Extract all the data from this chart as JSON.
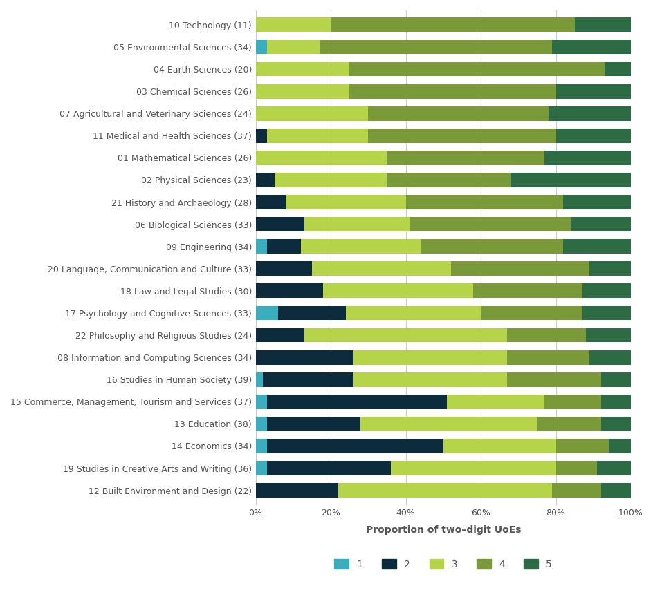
{
  "categories": [
    "10 Technology (11)",
    "05 Environmental Sciences (34)",
    "04 Earth Sciences (20)",
    "03 Chemical Sciences (26)",
    "07 Agricultural and Veterinary Sciences (24)",
    "11 Medical and Health Sciences (37)",
    "01 Mathematical Sciences (26)",
    "02 Physical Sciences (23)",
    "21 History and Archaeology (28)",
    "06 Biological Sciences (33)",
    "09 Engineering (34)",
    "20 Language, Communication and Culture (33)",
    "18 Law and Legal Studies (30)",
    "17 Psychology and Cognitive Sciences (33)",
    "22 Philosophy and Religious Studies (24)",
    "08 Information and Computing Sciences (34)",
    "16 Studies in Human Society (39)",
    "15 Commerce, Management, Tourism and Services (37)",
    "13 Education (38)",
    "14 Economics (34)",
    "19 Studies in Creative Arts and Writing (36)",
    "12 Built Environment and Design (22)"
  ],
  "data": {
    "1": [
      0.0,
      3.0,
      0.0,
      0.0,
      0.0,
      0.0,
      0.0,
      0.0,
      0.0,
      0.0,
      3.0,
      0.0,
      0.0,
      6.0,
      0.0,
      0.0,
      2.0,
      3.0,
      3.0,
      3.0,
      3.0,
      0.0
    ],
    "2": [
      0.0,
      0.0,
      0.0,
      0.0,
      0.0,
      3.0,
      0.0,
      5.0,
      8.0,
      13.0,
      9.0,
      15.0,
      18.0,
      18.0,
      13.0,
      26.0,
      24.0,
      48.0,
      25.0,
      47.0,
      33.0,
      22.0
    ],
    "3": [
      20.0,
      14.0,
      25.0,
      25.0,
      30.0,
      27.0,
      35.0,
      30.0,
      32.0,
      28.0,
      32.0,
      37.0,
      40.0,
      36.0,
      54.0,
      41.0,
      41.0,
      26.0,
      47.0,
      30.0,
      44.0,
      57.0
    ],
    "4": [
      65.0,
      62.0,
      68.0,
      55.0,
      48.0,
      50.0,
      42.0,
      33.0,
      42.0,
      43.0,
      38.0,
      37.0,
      29.0,
      27.0,
      21.0,
      22.0,
      25.0,
      15.0,
      17.0,
      14.0,
      11.0,
      13.0
    ],
    "5": [
      15.0,
      21.0,
      7.0,
      20.0,
      22.0,
      20.0,
      23.0,
      32.0,
      18.0,
      16.0,
      18.0,
      11.0,
      13.0,
      13.0,
      12.0,
      11.0,
      8.0,
      8.0,
      8.0,
      6.0,
      9.0,
      8.0
    ]
  },
  "colors": {
    "1": "#3aaebd",
    "2": "#0c2c3e",
    "3": "#b5d44a",
    "4": "#7a9a3a",
    "5": "#2d6b45"
  },
  "xlabel": "Proportion of two–digit UoEs",
  "bar_height": 0.65,
  "figsize": [
    9.45,
    8.77
  ],
  "dpi": 100,
  "background_color": "#ffffff",
  "grid_color": "#cccccc",
  "text_color": "#555555",
  "xticks": [
    0,
    20,
    40,
    60,
    80,
    100
  ],
  "xtick_labels": [
    "0%",
    "20%",
    "40%",
    "60%",
    "80%",
    "100%"
  ]
}
